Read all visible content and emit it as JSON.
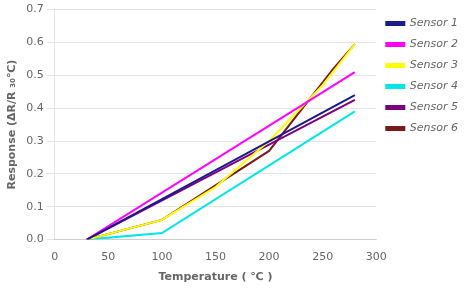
{
  "chart_data": {
    "type": "line",
    "xlabel": "Temperature ( ℃ )",
    "ylabel": "Response (ΔR/R ₃₀℃)",
    "xlim": [
      0,
      300
    ],
    "ylim": [
      0,
      0.7
    ],
    "xticks": [
      0,
      50,
      100,
      150,
      200,
      250,
      300
    ],
    "yticks": [
      {
        "value": 0,
        "label": "0.0"
      },
      0.1,
      0.2,
      0.3,
      0.4,
      0.5,
      0.6,
      0.7
    ],
    "grid": "y",
    "legend": "right",
    "series": [
      {
        "name": "Sensor 1",
        "color": "#1a1a8c",
        "x": [
          30,
          280
        ],
        "values": [
          0.0,
          0.44
        ]
      },
      {
        "name": "Sensor 2",
        "color": "#ff00ff",
        "x": [
          30,
          280
        ],
        "values": [
          0.0,
          0.51
        ]
      },
      {
        "name": "Sensor 3",
        "color": "#ffff00",
        "x": [
          30,
          100,
          150,
          200,
          250,
          280
        ],
        "values": [
          0.0,
          0.06,
          0.16,
          0.3,
          0.47,
          0.595
        ]
      },
      {
        "name": "Sensor 4",
        "color": "#00e5e5",
        "x": [
          30,
          100,
          280
        ],
        "values": [
          0.0,
          0.02,
          0.39
        ]
      },
      {
        "name": "Sensor 5",
        "color": "#7b0080",
        "x": [
          30,
          280
        ],
        "values": [
          0.0,
          0.425
        ]
      },
      {
        "name": "Sensor 6",
        "color": "#7b1a1a",
        "x": [
          30,
          100,
          200,
          260,
          280
        ],
        "values": [
          0.0,
          0.06,
          0.27,
          0.52,
          0.595
        ]
      }
    ]
  }
}
